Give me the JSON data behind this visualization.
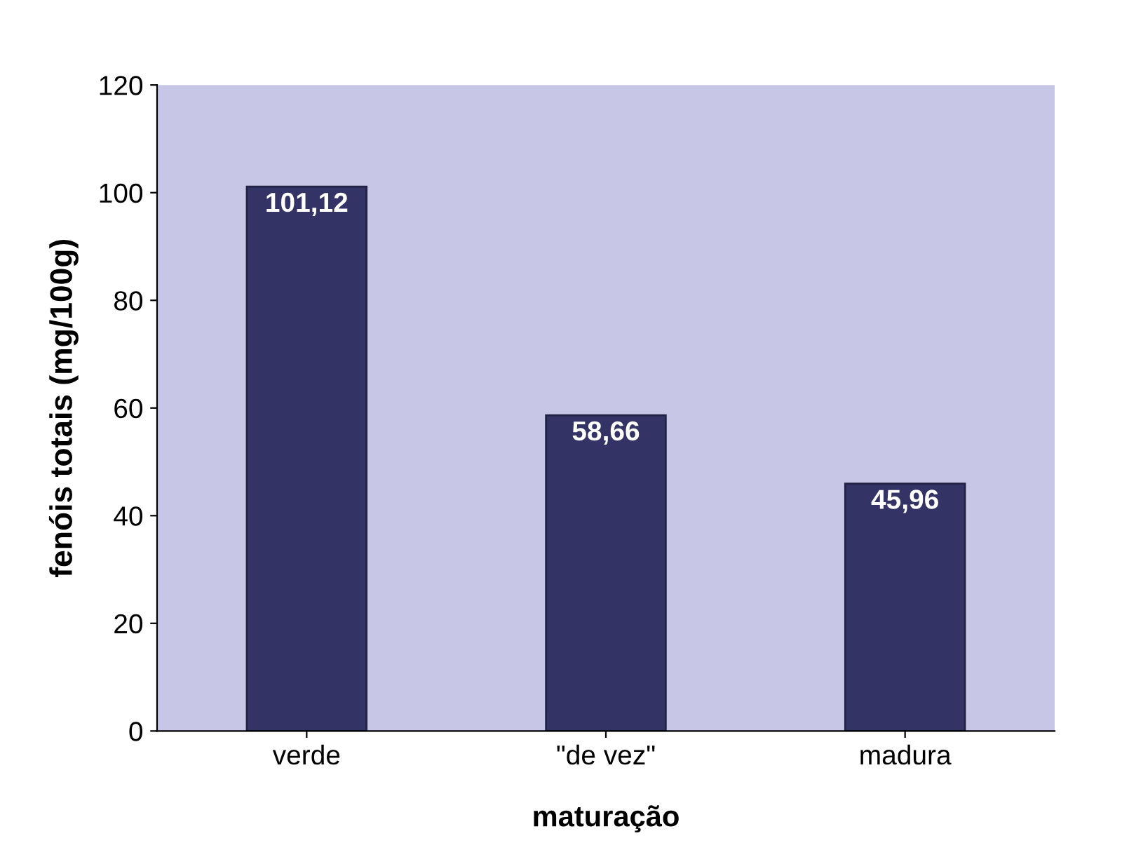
{
  "chart_data": {
    "type": "bar",
    "xlabel": "maturação",
    "ylabel": "fenóis totais (mg/100g)",
    "categories": [
      "verde",
      "\"de vez\"",
      "madura"
    ],
    "values": [
      101.12,
      58.66,
      45.96
    ],
    "value_labels": [
      "101,12",
      "58,66",
      "45,96"
    ],
    "color": "#333366",
    "ylim": [
      0,
      120
    ],
    "yticks": [
      0,
      20,
      40,
      60,
      80,
      100,
      120
    ],
    "grid": false
  }
}
